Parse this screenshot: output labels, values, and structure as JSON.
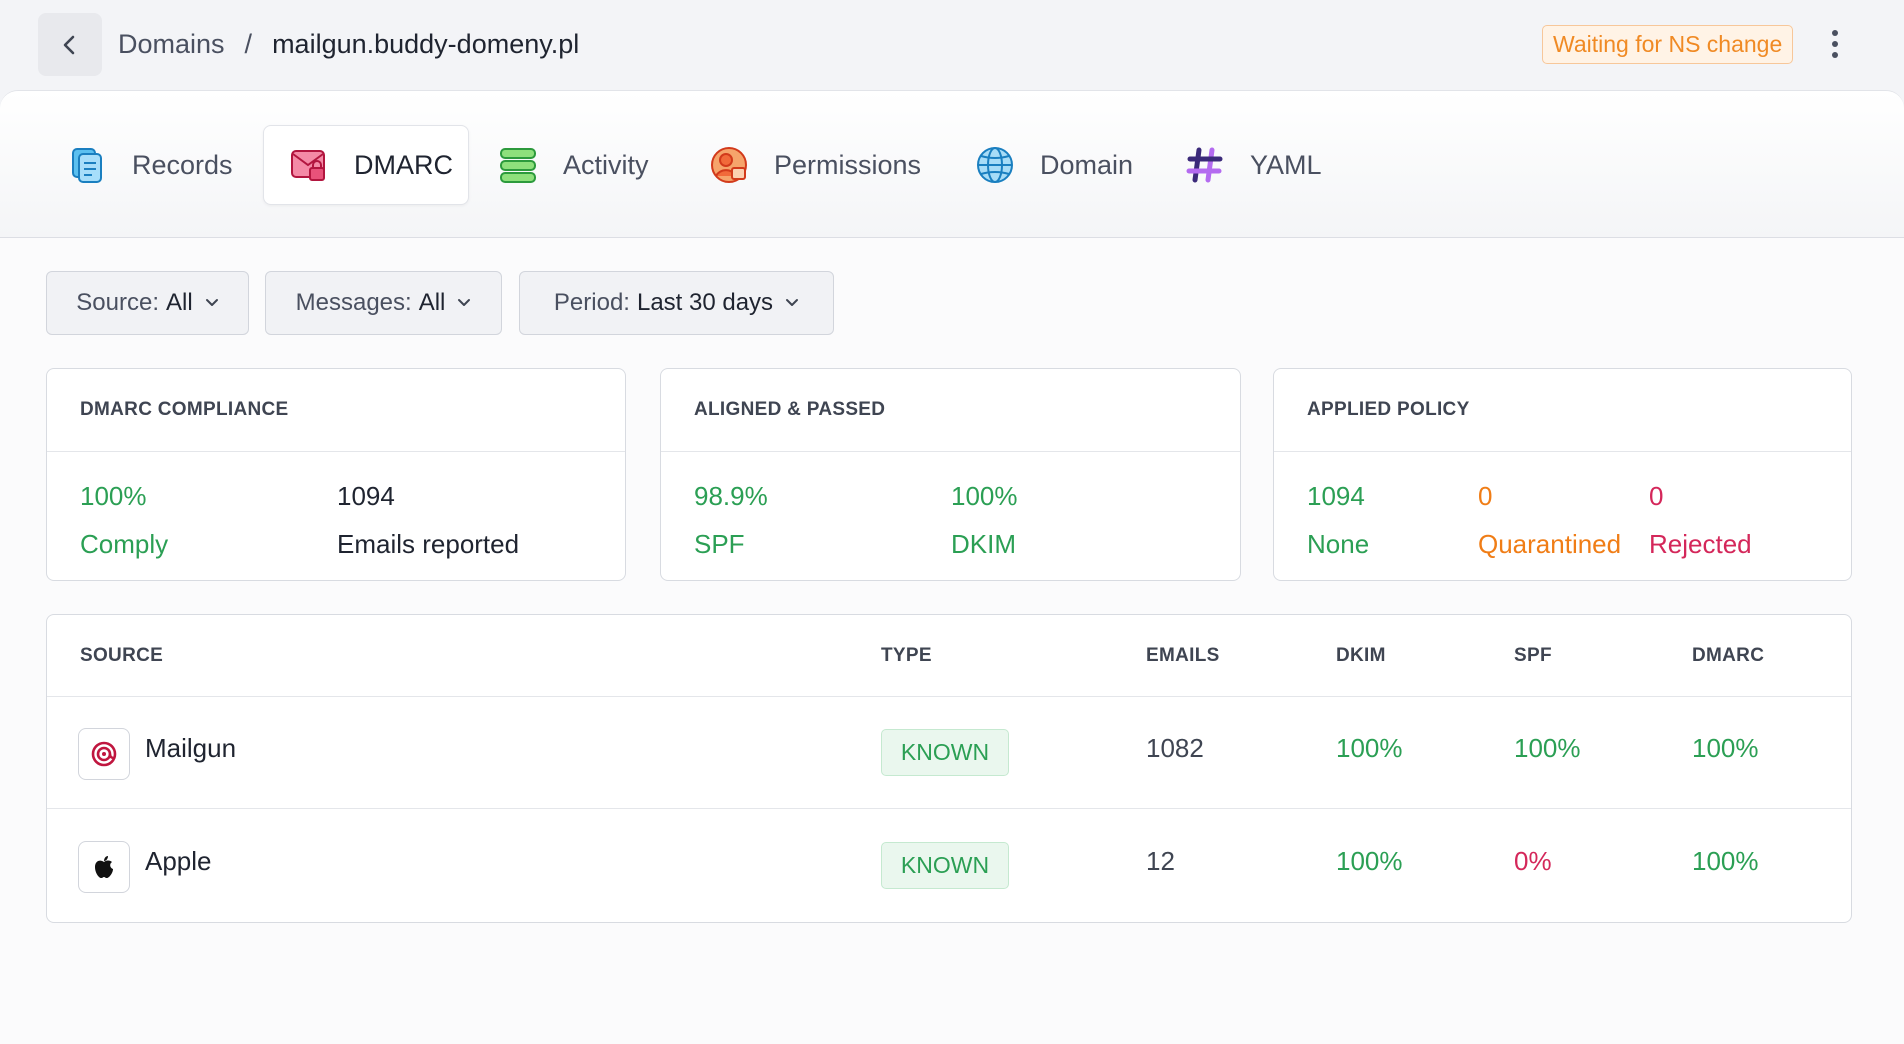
{
  "header": {
    "breadcrumb_parent": "Domains",
    "breadcrumb_separator": "/",
    "breadcrumb_current": "mailgun.buddy-domeny.pl",
    "status": "Waiting for NS change"
  },
  "tabs": [
    {
      "label": "Records",
      "icon": "records-icon"
    },
    {
      "label": "DMARC",
      "icon": "dmarc-icon",
      "active": true
    },
    {
      "label": "Activity",
      "icon": "activity-icon"
    },
    {
      "label": "Permissions",
      "icon": "permissions-icon"
    },
    {
      "label": "Domain",
      "icon": "domain-globe-icon"
    },
    {
      "label": "YAML",
      "icon": "yaml-hash-icon"
    }
  ],
  "filters": [
    {
      "label": "Source:",
      "value": "All"
    },
    {
      "label": "Messages:",
      "value": "All"
    },
    {
      "label": "Period:",
      "value": "Last 30 days"
    }
  ],
  "cards": {
    "compliance": {
      "title": "DMARC COMPLIANCE",
      "stats": [
        {
          "value": "100%",
          "label": "Comply"
        },
        {
          "value": "1094",
          "label": "Emails reported"
        }
      ]
    },
    "aligned": {
      "title": "ALIGNED & PASSED",
      "stats": [
        {
          "value": "98.9%",
          "label": "SPF"
        },
        {
          "value": "100%",
          "label": "DKIM"
        }
      ]
    },
    "policy": {
      "title": "APPLIED POLICY",
      "stats": [
        {
          "value": "1094",
          "label": "None"
        },
        {
          "value": "0",
          "label": "Quarantined"
        },
        {
          "value": "0",
          "label": "Rejected"
        }
      ]
    }
  },
  "table": {
    "columns": [
      "SOURCE",
      "TYPE",
      "EMAILS",
      "DKIM",
      "SPF",
      "DMARC"
    ],
    "rows": [
      {
        "source": "Mailgun",
        "type": "KNOWN",
        "emails": "1082",
        "dkim": "100%",
        "spf": "100%",
        "dmarc": "100%"
      },
      {
        "source": "Apple",
        "type": "KNOWN",
        "emails": "12",
        "dkim": "100%",
        "spf": "0%",
        "dmarc": "100%"
      }
    ]
  },
  "colors": {
    "success": "#2b9f54",
    "warning": "#f07d16",
    "danger": "#d4275a",
    "badge_bg": "#fff3e6"
  }
}
